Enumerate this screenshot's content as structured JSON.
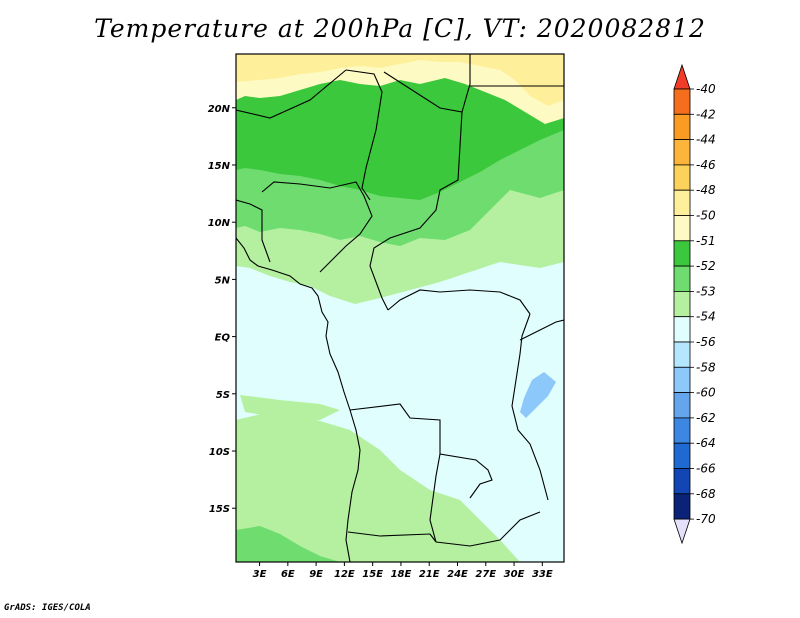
{
  "title": "Temperature at 200hPa [C], VT: 2020082812",
  "credit": "GrADS: IGES/COLA",
  "map": {
    "lat_labels": [
      "20N",
      "15N",
      "10N",
      "5N",
      "EQ",
      "5S",
      "10S",
      "15S"
    ],
    "lat_values": [
      20,
      15,
      10,
      5,
      0,
      -5,
      -10,
      -15
    ],
    "lon_labels": [
      "3E",
      "6E",
      "9E",
      "12E",
      "15E",
      "18E",
      "21E",
      "24E",
      "27E",
      "30E",
      "33E"
    ],
    "lon_values": [
      3,
      6,
      9,
      12,
      15,
      18,
      21,
      24,
      27,
      30,
      33
    ],
    "lon_range": [
      0.5,
      35.3
    ],
    "lat_range": [
      -19.7,
      24.7
    ]
  },
  "colorbar": {
    "labels": [
      "-40",
      "-42",
      "-44",
      "-46",
      "-48",
      "-50",
      "-51",
      "-52",
      "-53",
      "-54",
      "-56",
      "-58",
      "-60",
      "-62",
      "-64",
      "-66",
      "-68",
      "-70"
    ],
    "colors": [
      "#f03c28",
      "#f56e1e",
      "#fa9b23",
      "#fcb43a",
      "#fcd25a",
      "#fef09b",
      "#fdfac3",
      "#3cc83c",
      "#6edc6e",
      "#b4f0a0",
      "#e0fefe",
      "#b4e6fe",
      "#8cc8fa",
      "#64a5ed",
      "#3c87e1",
      "#1e69d2",
      "#1146b4",
      "#0a2378",
      "#e6e1fa"
    ]
  },
  "colors": {
    "cold_band": "#e0fefe",
    "green_light": "#b4f0a0",
    "green_mid": "#6edc6e",
    "green_dark": "#3cc83c",
    "yellow_pale": "#fdfac3",
    "yellow": "#fef09b",
    "lake_blue": "#8cc8fa"
  }
}
